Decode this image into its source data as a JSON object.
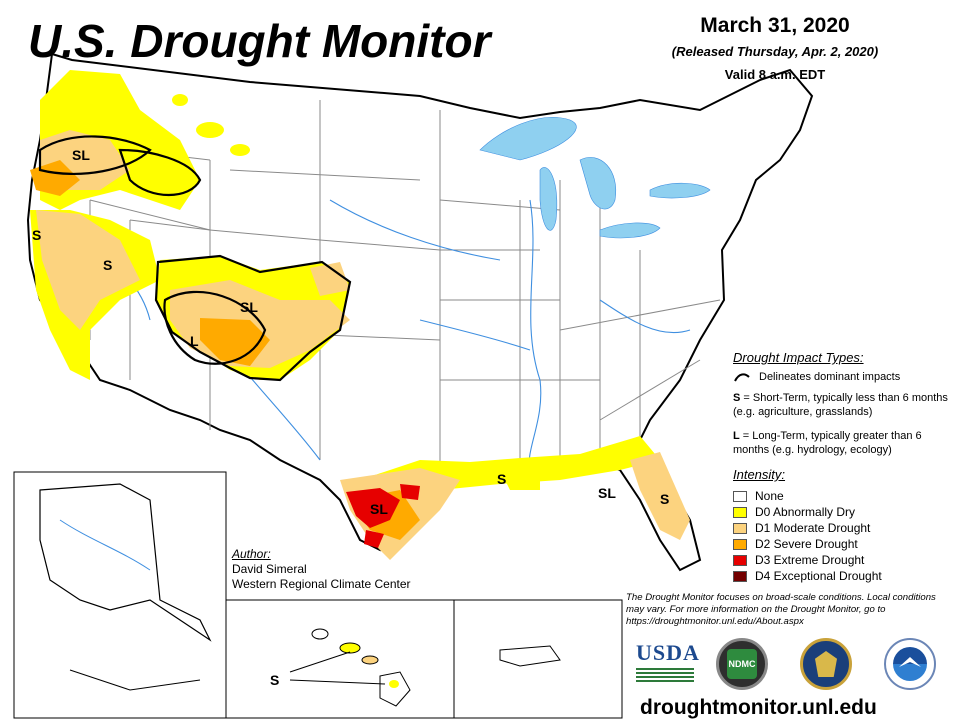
{
  "title": "U.S. Drought Monitor",
  "date": {
    "main": "March 31, 2020",
    "released": "(Released Thursday, Apr. 2, 2020)",
    "valid": "Valid 8 a.m. EDT"
  },
  "impact_types": {
    "heading": "Drought Impact Types:",
    "line_label": "Delineates dominant impacts",
    "short_term_code": "S",
    "short_term_text": "= Short-Term, typically less than 6 months (e.g. agriculture, grasslands)",
    "long_term_code": "L",
    "long_term_text": "= Long-Term, typically greater than 6 months (e.g. hydrology, ecology)"
  },
  "intensity": {
    "heading": "Intensity:",
    "levels": [
      {
        "label": "None",
        "color": "#ffffff"
      },
      {
        "label": "D0 Abnormally Dry",
        "color": "#ffff00"
      },
      {
        "label": "D1 Moderate Drought",
        "color": "#fcd37f"
      },
      {
        "label": "D2 Severe Drought",
        "color": "#ffaa00"
      },
      {
        "label": "D3 Extreme Drought",
        "color": "#e60000"
      },
      {
        "label": "D4 Exceptional Drought",
        "color": "#730000"
      }
    ]
  },
  "author": {
    "heading": "Author:",
    "name": "David Simeral",
    "org": "Western Regional Climate Center"
  },
  "note": "The Drought Monitor focuses on broad-scale conditions. Local conditions may vary. For more information on the Drought Monitor, go to https://droughtmonitor.unl.edu/About.aspx",
  "website": "droughtmonitor.unl.edu",
  "map_labels": {
    "or_sl": "SL",
    "ca_s": "S",
    "nv_s": "S",
    "co_sl": "SL",
    "ut_l": "L",
    "tx_sl": "SL",
    "la_s": "S",
    "fl_sl": "SL",
    "fl_s": "S",
    "hi_s": "S"
  },
  "logos": {
    "usda": "USDA",
    "ndmc": "NDMC"
  },
  "colors": {
    "water": "#8fd0f0",
    "river": "#3f8fe0",
    "border": "#8a8a8a"
  }
}
